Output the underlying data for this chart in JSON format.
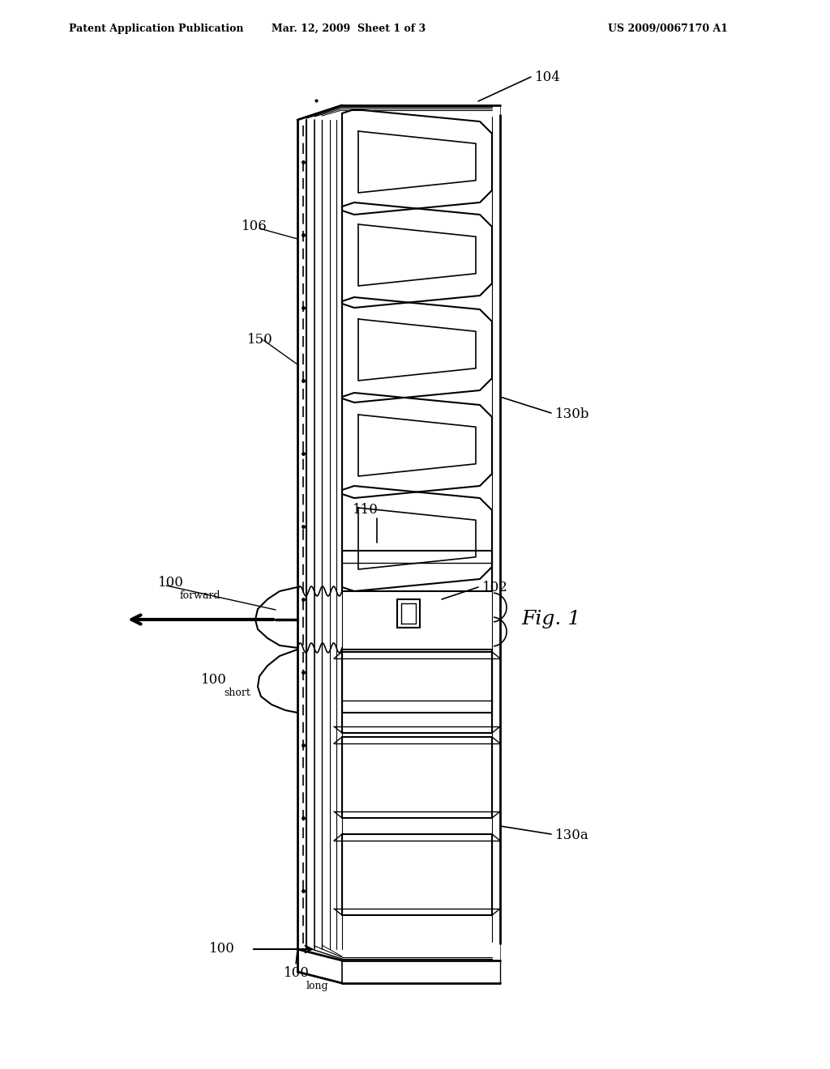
{
  "bg_color": "#ffffff",
  "header_left": "Patent Application Publication",
  "header_mid": "Mar. 12, 2009  Sheet 1 of 3",
  "header_right": "US 2009/0067170 A1",
  "fig_label": "Fig. 1"
}
